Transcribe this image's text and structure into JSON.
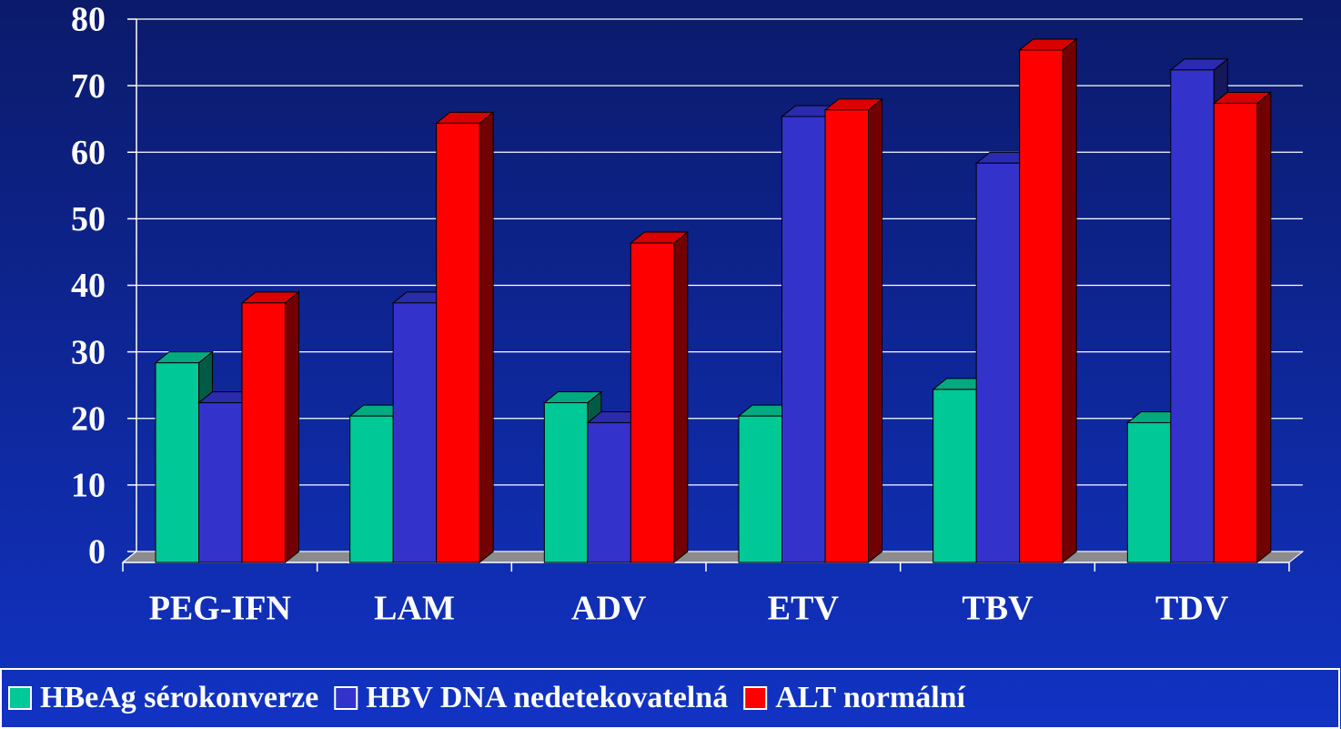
{
  "chart_data": {
    "type": "bar3d",
    "categories": [
      "PEG-IFN",
      "LAM",
      "ADV",
      "ETV",
      "TBV",
      "TDV"
    ],
    "series": [
      {
        "name": "HBeAg sérokonverze",
        "color": "#00c896",
        "values": [
          30,
          22,
          24,
          22,
          26,
          21
        ]
      },
      {
        "name": "HBV DNA nedetekovatelná",
        "color": "#3333cc",
        "values": [
          24,
          39,
          21,
          67,
          60,
          74
        ]
      },
      {
        "name": "ALT normální",
        "color": "#ff0000",
        "values": [
          39,
          66,
          48,
          68,
          77,
          69
        ]
      }
    ],
    "ylim": [
      0,
      80
    ],
    "yticks": [
      0,
      10,
      20,
      30,
      40,
      50,
      60,
      70,
      80
    ],
    "grid": true,
    "legend": "bottom"
  }
}
